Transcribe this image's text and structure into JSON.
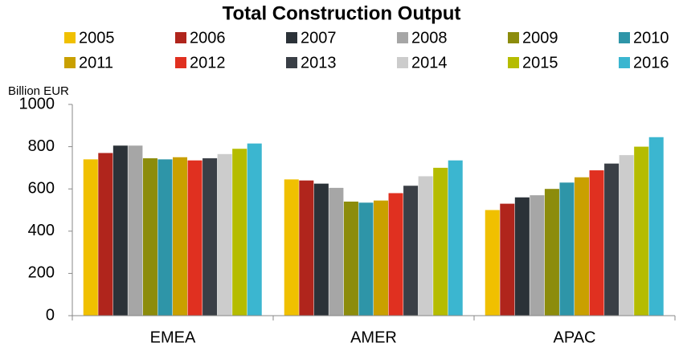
{
  "chart_data": {
    "type": "bar",
    "title": "Total Construction Output",
    "y_label": "Billion EUR",
    "categories": [
      "EMEA",
      "AMER",
      "APAC"
    ],
    "series": [
      {
        "name": "2005",
        "color": "#f0c000",
        "values": [
          740,
          645,
          500
        ]
      },
      {
        "name": "2006",
        "color": "#b0251c",
        "values": [
          770,
          640,
          530
        ]
      },
      {
        "name": "2007",
        "color": "#2b3238",
        "values": [
          805,
          625,
          560
        ]
      },
      {
        "name": "2008",
        "color": "#a6a6a6",
        "values": [
          805,
          605,
          570
        ]
      },
      {
        "name": "2009",
        "color": "#8c8c0c",
        "values": [
          745,
          540,
          600
        ]
      },
      {
        "name": "2010",
        "color": "#2e95a8",
        "values": [
          740,
          535,
          630
        ]
      },
      {
        "name": "2011",
        "color": "#c9a000",
        "values": [
          750,
          545,
          655
        ]
      },
      {
        "name": "2012",
        "color": "#e03020",
        "values": [
          735,
          580,
          688
        ]
      },
      {
        "name": "2013",
        "color": "#3a3f46",
        "values": [
          745,
          615,
          720
        ]
      },
      {
        "name": "2014",
        "color": "#cccccc",
        "values": [
          765,
          660,
          760
        ]
      },
      {
        "name": "2015",
        "color": "#b5bc00",
        "values": [
          790,
          700,
          800
        ]
      },
      {
        "name": "2016",
        "color": "#3bb6d0",
        "values": [
          815,
          735,
          845
        ]
      }
    ],
    "ylim": [
      0,
      1000
    ],
    "yticks": [
      0,
      200,
      400,
      600,
      800,
      1000
    ],
    "grid": false
  }
}
